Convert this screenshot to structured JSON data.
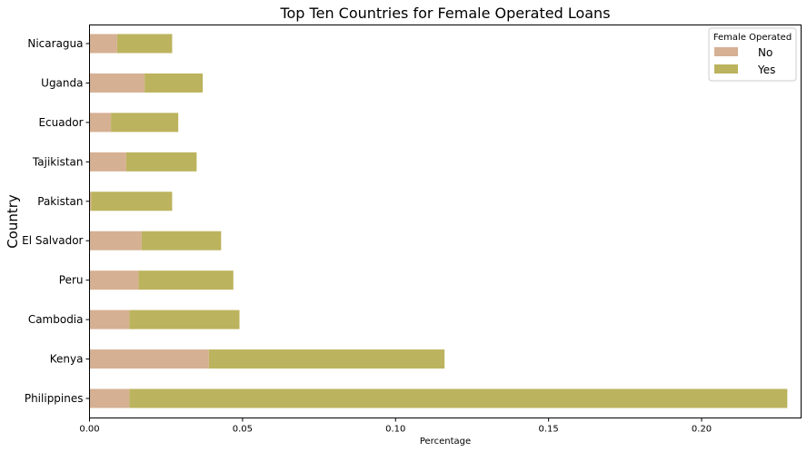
{
  "chart_data": {
    "type": "bar",
    "orientation": "horizontal",
    "stacked": true,
    "title": "Top Ten Countries for Female Operated Loans",
    "xlabel": "Percentage",
    "ylabel": "Country",
    "categories": [
      "Philippines",
      "Kenya",
      "Cambodia",
      "Peru",
      "El Salvador",
      "Pakistan",
      "Tajikistan",
      "Ecuador",
      "Uganda",
      "Nicaragua"
    ],
    "series": [
      {
        "name": "No",
        "color": "#d6b093",
        "values": [
          0.013,
          0.039,
          0.013,
          0.016,
          0.017,
          0.0005,
          0.012,
          0.007,
          0.018,
          0.009
        ]
      },
      {
        "name": "Yes",
        "color": "#bcb35e",
        "values": [
          0.215,
          0.077,
          0.036,
          0.031,
          0.026,
          0.0265,
          0.023,
          0.022,
          0.019,
          0.018
        ]
      }
    ],
    "xlim": [
      0,
      0.2325
    ],
    "xticks": [
      0.0,
      0.05,
      0.1,
      0.15,
      0.2
    ],
    "xtick_labels": [
      "0.00",
      "0.05",
      "0.10",
      "0.15",
      "0.20"
    ],
    "grid": false,
    "legend": {
      "title": "Female Operated",
      "placement": "top-right"
    }
  }
}
